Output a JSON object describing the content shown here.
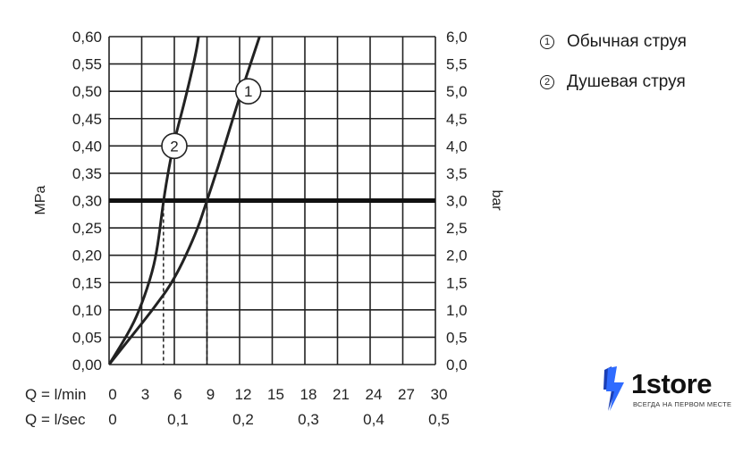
{
  "chart_data": {
    "type": "line",
    "left_axis": {
      "label": "MPa",
      "ticks": [
        "0,00",
        "0,05",
        "0,10",
        "0,15",
        "0,20",
        "0,25",
        "0,30",
        "0,35",
        "0,40",
        "0,45",
        "0,50",
        "0,55",
        "0,60"
      ],
      "range": [
        0,
        0.6
      ]
    },
    "right_axis": {
      "label": "bar",
      "ticks": [
        "0,0",
        "0,5",
        "1,0",
        "1,5",
        "2,0",
        "2,5",
        "3,0",
        "3,5",
        "4,0",
        "4,5",
        "5,0",
        "5,5",
        "6,0"
      ],
      "range": [
        0,
        6
      ]
    },
    "x_axis_lmin": {
      "label": "Q = l/min",
      "ticks": [
        "0",
        "3",
        "6",
        "9",
        "12",
        "15",
        "18",
        "21",
        "24",
        "27",
        "30"
      ],
      "range": [
        0,
        30
      ]
    },
    "x_axis_lsec": {
      "label": "Q = l/sec",
      "ticks": [
        "0",
        "0,1",
        "0,2",
        "0,3",
        "0,4",
        "0,5"
      ],
      "range": [
        0,
        0.5
      ]
    },
    "grid": true,
    "series": [
      {
        "marker": "1",
        "x": [
          0,
          2,
          4,
          6,
          8,
          9,
          10,
          11,
          12,
          13,
          14
        ],
        "y": [
          0,
          0.05,
          0.1,
          0.155,
          0.24,
          0.3,
          0.36,
          0.425,
          0.49,
          0.55,
          0.61
        ]
      },
      {
        "marker": "2",
        "x": [
          0,
          2,
          3,
          4,
          4.5,
          5,
          5.5,
          6,
          7,
          8,
          8.3
        ],
        "y": [
          0,
          0.065,
          0.11,
          0.17,
          0.22,
          0.3,
          0.36,
          0.41,
          0.485,
          0.57,
          0.61
        ]
      }
    ],
    "annotations": [
      {
        "type": "reference_line",
        "y": 0.3
      },
      {
        "type": "drop_line",
        "x": 5,
        "y": 0.3
      },
      {
        "type": "drop_line",
        "x": 9,
        "y": 0.3
      },
      {
        "type": "curve_label",
        "text": "1",
        "x": 12.8,
        "y": 0.5
      },
      {
        "type": "curve_label",
        "text": "2",
        "x": 6,
        "y": 0.4
      }
    ],
    "colors": {
      "curve": "#222222",
      "grid": "#222222"
    }
  },
  "legend": {
    "items": [
      {
        "num": "1",
        "text": "Обычная струя"
      },
      {
        "num": "2",
        "text": "Душевая струя"
      }
    ]
  },
  "logo": {
    "name": "1store",
    "tagline": "ВСЕГДА НА ПЕРВОМ МЕСТЕ",
    "colors": {
      "bolt": "#2f6bff",
      "bolt_dark": "#1b3fb5"
    }
  }
}
